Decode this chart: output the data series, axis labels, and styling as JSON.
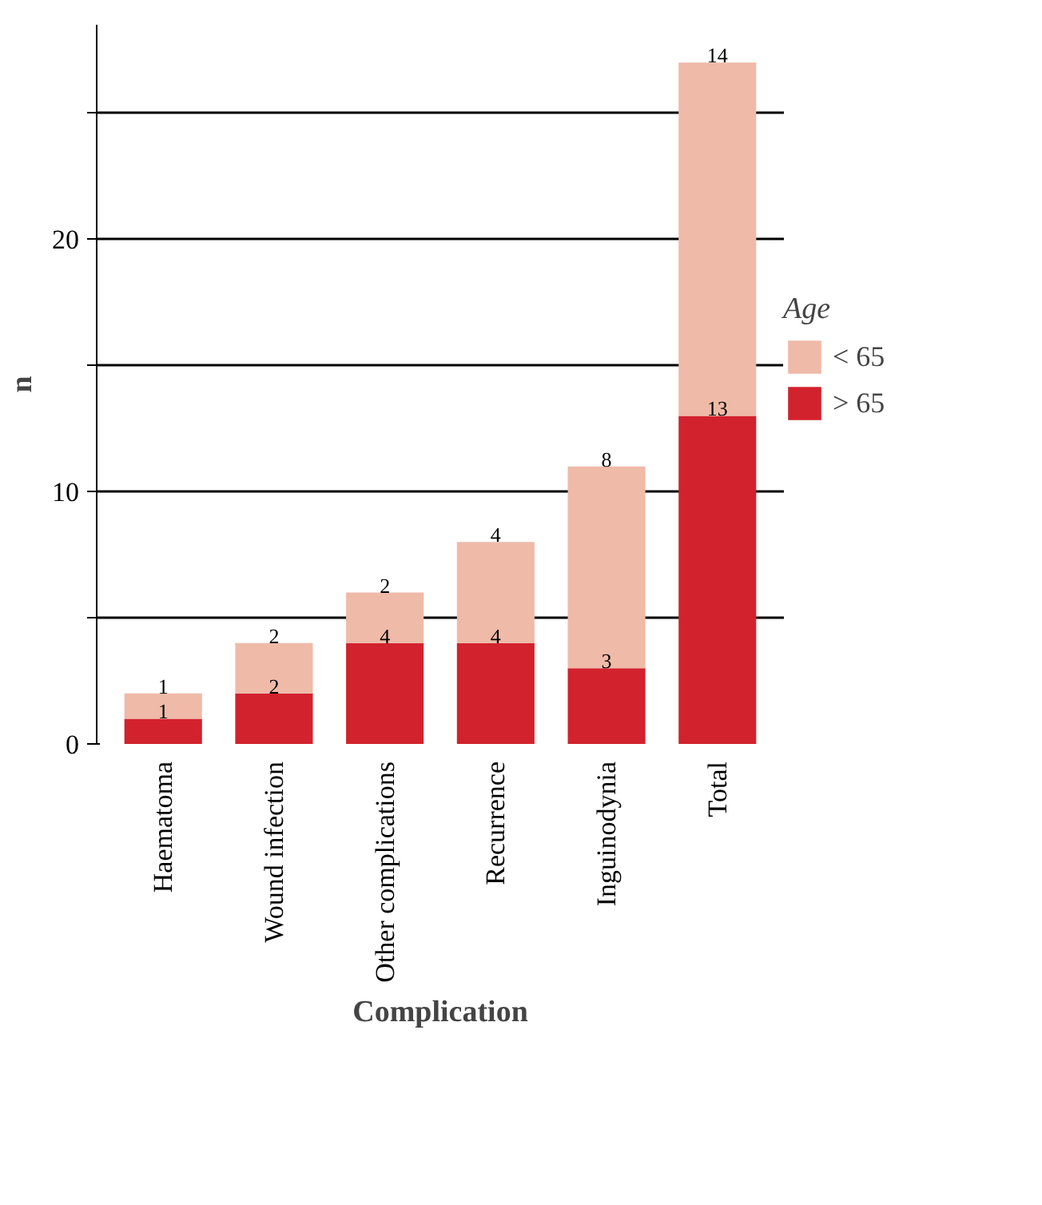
{
  "chart_data": {
    "type": "bar",
    "stacked": true,
    "xlabel": "Complication",
    "ylabel": "n",
    "legend_title": "Age",
    "legend": "right",
    "grid": "y",
    "data_labels": true,
    "categories": [
      "Haematoma",
      "Wound infection",
      "Other complications",
      "Recurrence",
      "Inguinodynia",
      "Total"
    ],
    "series": [
      {
        "name": "> 65",
        "color": "#d2222d",
        "values": [
          1,
          2,
          4,
          4,
          3,
          13
        ]
      },
      {
        "name": "< 65",
        "color": "#efbaa8",
        "values": [
          1,
          2,
          2,
          4,
          8,
          14
        ]
      }
    ],
    "ylim": [
      0,
      28.5
    ],
    "yticks": [
      0,
      {
        "value": 5,
        "label": null
      },
      10,
      {
        "value": 15,
        "label": null
      },
      20,
      {
        "value": 25,
        "label": null
      }
    ]
  }
}
